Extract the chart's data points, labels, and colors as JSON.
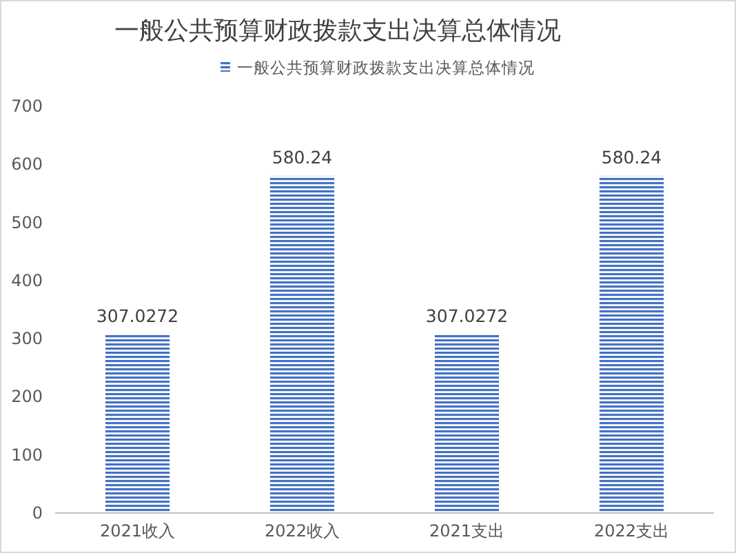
{
  "chart_data": {
    "type": "bar",
    "title": "一般公共预算财政拨款支出决算总体情况",
    "categories": [
      "2021收入",
      "2022收入",
      "2021支出",
      "2022支出"
    ],
    "series": [
      {
        "name": "一般公共预算财政拨款支出决算总体情况",
        "color": "#4472c4",
        "values": [
          307.0272,
          580.24,
          307.0272,
          580.24
        ]
      }
    ],
    "ylim": [
      0,
      700
    ],
    "yticks": [
      0,
      100,
      200,
      300,
      400,
      500,
      600,
      700
    ],
    "data_labels": true,
    "legend": "top",
    "grid": false
  }
}
